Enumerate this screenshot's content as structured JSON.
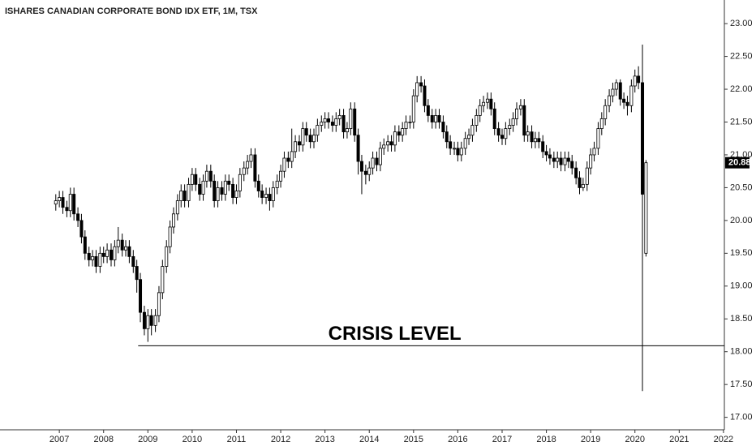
{
  "chart_data": {
    "type": "candlestick",
    "title": "ISHARES CANADIAN CORPORATE BOND IDX ETF, 1M, TSX",
    "xlim": [
      2005.66,
      2022.02
    ],
    "ylim": [
      16.81,
      23.36
    ],
    "xticks": [
      2007,
      2008,
      2009,
      2010,
      2011,
      2012,
      2013,
      2014,
      2015,
      2016,
      2017,
      2018,
      2019,
      2020,
      2021,
      2022
    ],
    "yticks": [
      {
        "value": 17,
        "label": "17.00"
      },
      {
        "value": 17.5,
        "label": "17.50"
      },
      {
        "value": 18,
        "label": "18.00"
      },
      {
        "value": 18.5,
        "label": "18.50"
      },
      {
        "value": 19,
        "label": "19.00"
      },
      {
        "value": 19.5,
        "label": "19.50"
      },
      {
        "value": 20,
        "label": "20.00"
      },
      {
        "value": 20.5,
        "label": "20.50"
      },
      {
        "value": 21,
        "label": "21.00"
      },
      {
        "value": 21.5,
        "label": "21.50"
      },
      {
        "value": 22,
        "label": "22.00"
      },
      {
        "value": 22.5,
        "label": "22.50"
      },
      {
        "value": 23,
        "label": "23.00"
      }
    ],
    "up_color": "#ffffff",
    "down_color": "#000000",
    "level": {
      "label": "CRISIS LEVEL",
      "value": 18.09,
      "x_start": 2008.78
    },
    "x": [
      2006.92,
      2007.0,
      2007.08,
      2007.17,
      2007.25,
      2007.33,
      2007.42,
      2007.5,
      2007.58,
      2007.67,
      2007.75,
      2007.83,
      2007.92,
      2008.0,
      2008.08,
      2008.17,
      2008.25,
      2008.33,
      2008.42,
      2008.5,
      2008.58,
      2008.67,
      2008.75,
      2008.83,
      2008.92,
      2009.0,
      2009.08,
      2009.17,
      2009.25,
      2009.33,
      2009.42,
      2009.5,
      2009.58,
      2009.67,
      2009.75,
      2009.83,
      2009.92,
      2010.0,
      2010.08,
      2010.17,
      2010.25,
      2010.33,
      2010.42,
      2010.5,
      2010.58,
      2010.67,
      2010.75,
      2010.83,
      2010.92,
      2011.0,
      2011.08,
      2011.17,
      2011.25,
      2011.33,
      2011.42,
      2011.5,
      2011.58,
      2011.67,
      2011.75,
      2011.83,
      2011.92,
      2012.0,
      2012.08,
      2012.17,
      2012.25,
      2012.33,
      2012.42,
      2012.5,
      2012.58,
      2012.67,
      2012.75,
      2012.83,
      2012.92,
      2013.0,
      2013.08,
      2013.17,
      2013.25,
      2013.33,
      2013.42,
      2013.5,
      2013.58,
      2013.67,
      2013.75,
      2013.83,
      2013.92,
      2014.0,
      2014.08,
      2014.17,
      2014.25,
      2014.33,
      2014.42,
      2014.5,
      2014.58,
      2014.67,
      2014.75,
      2014.83,
      2014.92,
      2015.0,
      2015.08,
      2015.17,
      2015.25,
      2015.33,
      2015.42,
      2015.5,
      2015.58,
      2015.67,
      2015.75,
      2015.83,
      2015.92,
      2016.0,
      2016.08,
      2016.17,
      2016.25,
      2016.33,
      2016.42,
      2016.5,
      2016.58,
      2016.67,
      2016.75,
      2016.83,
      2016.92,
      2017.0,
      2017.08,
      2017.17,
      2017.25,
      2017.33,
      2017.42,
      2017.5,
      2017.58,
      2017.67,
      2017.75,
      2017.83,
      2017.92,
      2018.0,
      2018.08,
      2018.17,
      2018.25,
      2018.33,
      2018.42,
      2018.5,
      2018.58,
      2018.67,
      2018.75,
      2018.83,
      2018.92,
      2019.0,
      2019.08,
      2019.17,
      2019.25,
      2019.33,
      2019.42,
      2019.5,
      2019.58,
      2019.67,
      2019.75,
      2019.83,
      2019.92,
      2020.0,
      2020.08,
      2020.17,
      2020.25
    ],
    "open": [
      20.25,
      20.3,
      20.35,
      20.2,
      20.15,
      20.4,
      20.1,
      20.0,
      19.75,
      19.5,
      19.4,
      19.45,
      19.3,
      19.5,
      19.45,
      19.55,
      19.4,
      19.6,
      19.7,
      19.55,
      19.6,
      19.45,
      19.3,
      19.1,
      18.6,
      18.35,
      18.55,
      18.4,
      18.55,
      18.9,
      19.3,
      19.6,
      19.9,
      20.1,
      20.3,
      20.45,
      20.3,
      20.55,
      20.7,
      20.55,
      20.4,
      20.6,
      20.75,
      20.6,
      20.3,
      20.5,
      20.4,
      20.6,
      20.55,
      20.35,
      20.45,
      20.7,
      20.8,
      20.9,
      21.0,
      20.6,
      20.45,
      20.35,
      20.4,
      20.3,
      20.5,
      20.6,
      20.75,
      20.95,
      20.9,
      21.05,
      21.2,
      21.15,
      21.4,
      21.3,
      21.2,
      21.3,
      21.45,
      21.5,
      21.55,
      21.5,
      21.45,
      21.55,
      21.6,
      21.35,
      21.4,
      21.7,
      21.3,
      20.9,
      20.75,
      20.7,
      20.8,
      20.95,
      20.85,
      21.1,
      21.15,
      21.2,
      21.15,
      21.35,
      21.3,
      21.4,
      21.5,
      21.5,
      21.9,
      22.1,
      22.05,
      21.75,
      21.6,
      21.5,
      21.6,
      21.5,
      21.35,
      21.2,
      21.1,
      21.1,
      21.0,
      21.1,
      21.25,
      21.3,
      21.45,
      21.6,
      21.75,
      21.8,
      21.85,
      21.7,
      21.4,
      21.3,
      21.25,
      21.4,
      21.45,
      21.55,
      21.7,
      21.75,
      21.3,
      21.35,
      21.2,
      21.25,
      21.2,
      21.05,
      21.0,
      20.95,
      20.9,
      20.95,
      20.85,
      20.95,
      20.9,
      20.8,
      20.65,
      20.5,
      20.55,
      20.8,
      21.0,
      21.1,
      21.4,
      21.55,
      21.75,
      21.9,
      22.0,
      22.1,
      21.85,
      21.8,
      21.75,
      22.05,
      22.2,
      22.1,
      19.5
    ],
    "high": [
      20.4,
      20.45,
      20.45,
      20.3,
      20.5,
      20.5,
      20.2,
      20.1,
      19.85,
      19.6,
      19.55,
      19.55,
      19.6,
      19.6,
      19.65,
      19.65,
      19.7,
      19.9,
      19.8,
      19.7,
      19.7,
      19.55,
      19.4,
      19.2,
      18.7,
      18.65,
      18.65,
      18.65,
      19.0,
      19.4,
      19.7,
      20.0,
      20.2,
      20.4,
      20.55,
      20.55,
      20.65,
      20.8,
      20.8,
      20.65,
      20.7,
      20.85,
      20.85,
      20.7,
      20.6,
      20.6,
      20.7,
      20.7,
      20.65,
      20.55,
      20.8,
      20.9,
      21.0,
      21.1,
      21.1,
      20.7,
      20.55,
      20.5,
      20.5,
      20.6,
      20.7,
      20.85,
      21.05,
      21.05,
      21.4,
      21.3,
      21.3,
      21.5,
      21.5,
      21.4,
      21.4,
      21.55,
      21.6,
      21.65,
      21.65,
      21.6,
      21.65,
      21.7,
      21.7,
      21.5,
      21.8,
      21.8,
      21.4,
      21.0,
      20.85,
      20.9,
      21.05,
      21.05,
      21.2,
      21.25,
      21.3,
      21.3,
      21.45,
      21.45,
      21.5,
      21.6,
      21.6,
      22.0,
      22.2,
      22.2,
      22.15,
      21.85,
      21.7,
      21.7,
      21.7,
      21.6,
      21.45,
      21.3,
      21.2,
      21.2,
      21.2,
      21.35,
      21.4,
      21.55,
      21.7,
      21.85,
      21.9,
      21.95,
      21.95,
      21.8,
      21.5,
      21.4,
      21.5,
      21.55,
      21.65,
      21.8,
      21.85,
      21.85,
      21.45,
      21.45,
      21.35,
      21.35,
      21.3,
      21.15,
      21.1,
      21.05,
      21.05,
      21.05,
      21.05,
      21.05,
      21.0,
      20.9,
      20.75,
      20.65,
      20.9,
      21.1,
      21.2,
      21.5,
      21.65,
      21.85,
      22.0,
      22.1,
      22.15,
      22.15,
      21.95,
      21.9,
      22.15,
      22.3,
      22.35,
      22.68,
      20.92
    ],
    "low": [
      20.15,
      20.2,
      20.1,
      20.05,
      20.05,
      20.0,
      19.9,
      19.65,
      19.4,
      19.3,
      19.3,
      19.2,
      19.2,
      19.35,
      19.35,
      19.3,
      19.3,
      19.5,
      19.45,
      19.45,
      19.35,
      19.2,
      18.9,
      18.45,
      18.25,
      18.15,
      18.25,
      18.3,
      18.45,
      18.8,
      19.2,
      19.5,
      19.8,
      20.0,
      20.2,
      20.2,
      20.2,
      20.45,
      20.45,
      20.3,
      20.3,
      20.5,
      20.5,
      20.2,
      20.2,
      20.3,
      20.3,
      20.45,
      20.25,
      20.25,
      20.35,
      20.6,
      20.7,
      20.8,
      20.5,
      20.35,
      20.25,
      20.25,
      20.15,
      20.2,
      20.4,
      20.5,
      20.65,
      20.8,
      20.8,
      20.95,
      21.05,
      21.05,
      21.2,
      21.1,
      21.1,
      21.2,
      21.35,
      21.4,
      21.4,
      21.35,
      21.35,
      21.45,
      21.25,
      21.25,
      21.3,
      21.2,
      20.7,
      20.4,
      20.55,
      20.6,
      20.7,
      20.75,
      20.75,
      21.0,
      21.05,
      21.05,
      21.05,
      21.2,
      21.2,
      21.3,
      21.4,
      21.4,
      21.8,
      21.95,
      21.65,
      21.5,
      21.4,
      21.4,
      21.4,
      21.25,
      21.1,
      21.0,
      21.0,
      20.9,
      20.9,
      21.0,
      21.15,
      21.2,
      21.35,
      21.5,
      21.65,
      21.7,
      21.6,
      21.3,
      21.2,
      21.15,
      21.15,
      21.3,
      21.35,
      21.45,
      21.6,
      21.2,
      21.2,
      21.1,
      21.1,
      21.1,
      20.95,
      20.9,
      20.85,
      20.8,
      20.8,
      20.75,
      20.75,
      20.8,
      20.7,
      20.55,
      20.4,
      20.45,
      20.45,
      20.7,
      20.9,
      21.0,
      21.3,
      21.45,
      21.65,
      21.8,
      21.9,
      21.75,
      21.7,
      21.6,
      21.65,
      21.95,
      22.0,
      17.4,
      19.45
    ],
    "close": [
      20.3,
      20.35,
      20.2,
      20.15,
      20.4,
      20.1,
      20.0,
      19.75,
      19.5,
      19.4,
      19.45,
      19.3,
      19.5,
      19.45,
      19.55,
      19.4,
      19.6,
      19.7,
      19.55,
      19.6,
      19.45,
      19.3,
      19.1,
      18.6,
      18.35,
      18.55,
      18.4,
      18.55,
      18.9,
      19.3,
      19.6,
      19.9,
      20.1,
      20.3,
      20.45,
      20.3,
      20.55,
      20.7,
      20.55,
      20.4,
      20.6,
      20.75,
      20.6,
      20.3,
      20.5,
      20.4,
      20.6,
      20.55,
      20.35,
      20.45,
      20.7,
      20.8,
      20.9,
      21.0,
      20.6,
      20.45,
      20.35,
      20.4,
      20.3,
      20.5,
      20.6,
      20.75,
      20.95,
      20.9,
      21.05,
      21.2,
      21.15,
      21.4,
      21.3,
      21.2,
      21.3,
      21.45,
      21.5,
      21.55,
      21.5,
      21.45,
      21.55,
      21.6,
      21.35,
      21.4,
      21.7,
      21.3,
      20.9,
      20.75,
      20.7,
      20.8,
      20.95,
      20.85,
      21.1,
      21.15,
      21.2,
      21.15,
      21.35,
      21.3,
      21.4,
      21.5,
      21.5,
      21.9,
      22.1,
      22.05,
      21.75,
      21.6,
      21.5,
      21.6,
      21.5,
      21.35,
      21.2,
      21.1,
      21.1,
      21.0,
      21.1,
      21.25,
      21.3,
      21.45,
      21.6,
      21.75,
      21.8,
      21.85,
      21.7,
      21.4,
      21.3,
      21.25,
      21.4,
      21.45,
      21.55,
      21.7,
      21.75,
      21.3,
      21.35,
      21.2,
      21.25,
      21.2,
      21.05,
      21.0,
      20.95,
      20.9,
      20.95,
      20.85,
      20.95,
      20.9,
      20.8,
      20.65,
      20.5,
      20.55,
      20.8,
      21.0,
      21.1,
      21.4,
      21.55,
      21.75,
      21.9,
      22.0,
      22.1,
      21.85,
      21.8,
      21.75,
      22.05,
      22.2,
      22.1,
      20.4,
      20.88
    ]
  }
}
